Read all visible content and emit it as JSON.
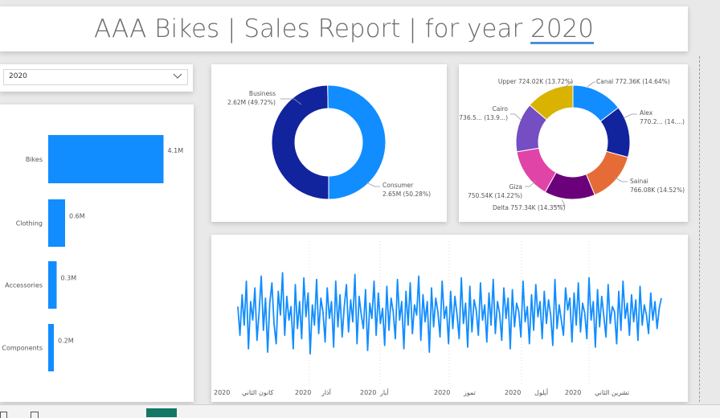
{
  "report": {
    "title_prefix": "AAA Bikes | Sales Report | for year ",
    "title_year": "2020"
  },
  "slicer": {
    "selected": "2020",
    "icon": "chevron-down-icon"
  },
  "chart_data": [
    {
      "type": "bar",
      "orientation": "horizontal",
      "categories": [
        "Bikes",
        "Clothing",
        "Accessories",
        "Components"
      ],
      "values": [
        4.1,
        0.6,
        0.3,
        0.2
      ],
      "data_labels": [
        "4.1M",
        "0.6M",
        "0.3M",
        "0.2M"
      ],
      "color": "#118DFF",
      "xlim": [
        0,
        4.8
      ]
    },
    {
      "type": "pie",
      "donut": true,
      "slices": [
        {
          "name": "Business",
          "value": 2.62,
          "label": "2.62M (49.72%)",
          "color": "#12239E"
        },
        {
          "name": "Consumer",
          "value": 2.65,
          "label": "2.65M (50.28%)",
          "color": "#118DFF"
        }
      ]
    },
    {
      "type": "pie",
      "donut": true,
      "slices": [
        {
          "name": "Canal",
          "value": 772.36,
          "label": "772.36K (14.64%)",
          "color": "#118DFF"
        },
        {
          "name": "Alex",
          "value": 770.2,
          "label": "770.2... (14....)",
          "color": "#12239E"
        },
        {
          "name": "Sainai",
          "value": 766.08,
          "label": "766.08K (14.52%)",
          "color": "#E66C37"
        },
        {
          "name": "Delta",
          "value": 757.34,
          "label": "757.34K (14.35%)",
          "color": "#6B007B"
        },
        {
          "name": "Giza",
          "value": 750.54,
          "label": "750.54K (14.22%)",
          "color": "#E044A7"
        },
        {
          "name": "Cairo",
          "value": 736.5,
          "label": "736.5... (13.9...)",
          "color": "#744EC2"
        },
        {
          "name": "Upper",
          "value": 724.02,
          "label": "724.02K (13.72%)",
          "color": "#D9B300"
        }
      ]
    },
    {
      "type": "line",
      "color": "#118DFF",
      "x_range": [
        "2020-01-01",
        "2020-12-31"
      ],
      "x_ticks": [
        {
          "year": "2020",
          "month": "كانون الثاني"
        },
        {
          "year": "2020",
          "month": "آذار"
        },
        {
          "year": "2020",
          "month": "أيار"
        },
        {
          "year": "2020",
          "month": "تموز"
        },
        {
          "year": "2020",
          "month": "أيلول"
        },
        {
          "year": "2020",
          "month": "تشرين الثاني"
        }
      ],
      "ylim": [
        0,
        100
      ],
      "y": [
        55,
        38,
        62,
        44,
        70,
        30,
        58,
        47,
        66,
        35,
        52,
        73,
        41,
        60,
        28,
        57,
        69,
        45,
        33,
        64,
        50,
        75,
        38,
        61,
        47,
        55,
        30,
        68,
        42,
        58,
        36,
        72,
        49,
        63,
        27,
        56,
        44,
        71,
        39,
        60,
        52,
        34,
        66,
        48,
        58,
        31,
        70,
        43,
        62,
        37,
        55,
        68,
        40,
        59,
        46,
        74,
        33,
        61,
        50,
        42,
        65,
        29,
        57,
        48,
        70,
        38,
        63,
        45,
        54,
        32,
        67,
        41,
        60,
        52,
        36,
        71,
        47,
        58,
        30,
        64,
        44,
        69,
        39,
        56,
        50,
        73,
        35,
        62,
        46,
        58,
        28,
        66,
        43,
        60,
        52,
        37,
        70,
        48,
        55,
        33,
        64,
        42,
        61,
        50,
        36,
        72,
        45,
        57,
        31,
        67,
        40,
        59,
        53,
        38,
        69,
        47,
        56,
        34,
        63,
        44,
        71,
        39,
        58,
        51,
        35,
        66,
        48,
        60,
        30,
        65,
        43,
        57,
        52,
        37,
        70,
        46,
        55,
        33,
        62,
        41,
        68,
        49,
        58,
        36,
        64,
        45,
        59,
        50,
        32,
        71,
        42,
        56,
        47,
        38,
        66,
        53,
        60,
        34,
        63,
        44,
        69,
        40,
        57,
        51,
        36,
        72,
        47,
        58,
        31,
        65,
        43,
        61,
        49,
        37,
        68,
        45,
        55,
        52,
        33,
        64,
        41,
        70,
        48,
        57,
        38,
        62,
        46,
        59,
        35,
        67,
        44,
        56,
        50,
        39,
        63,
        47,
        58,
        42,
        54,
        60
      ],
      "gridlines_x": "dotted"
    }
  ]
}
